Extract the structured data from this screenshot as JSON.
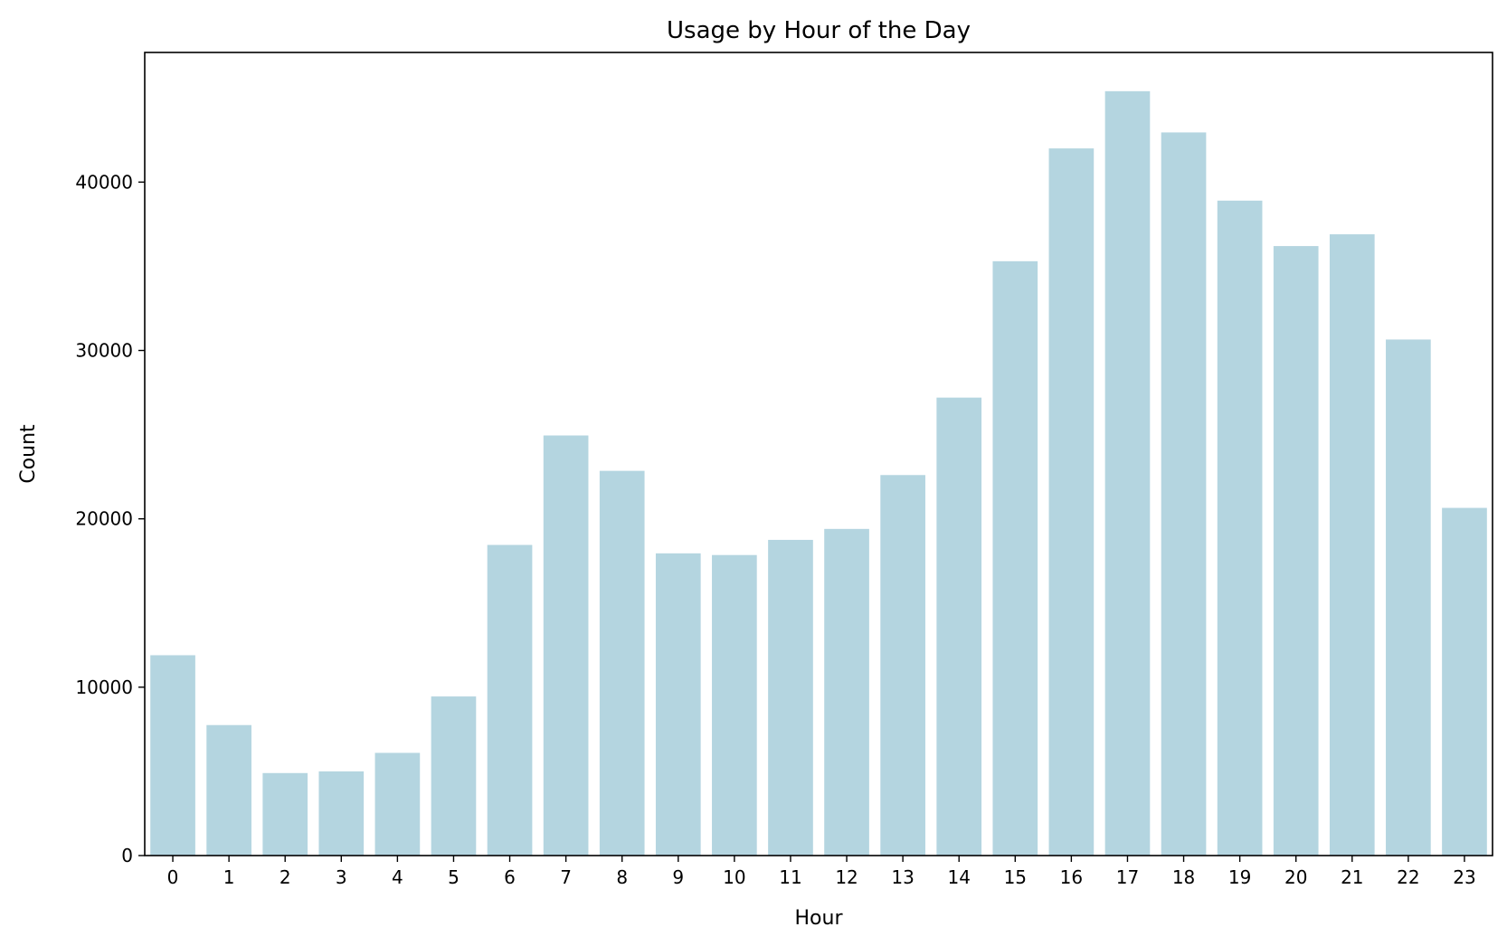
{
  "chart_data": {
    "type": "bar",
    "title": "Usage by Hour of the Day",
    "xlabel": "Hour",
    "ylabel": "Count",
    "categories": [
      "0",
      "1",
      "2",
      "3",
      "4",
      "5",
      "6",
      "7",
      "8",
      "9",
      "10",
      "11",
      "12",
      "13",
      "14",
      "15",
      "16",
      "17",
      "18",
      "19",
      "20",
      "21",
      "22",
      "23"
    ],
    "values": [
      11900,
      7750,
      4900,
      5000,
      6100,
      9450,
      18450,
      24950,
      22850,
      17950,
      17850,
      18750,
      19400,
      22600,
      27200,
      35300,
      42000,
      45400,
      42950,
      38900,
      36200,
      36900,
      30650,
      20650
    ],
    "ylim": [
      0,
      47700
    ],
    "yticks": [
      0,
      10000,
      20000,
      30000,
      40000
    ],
    "grid": false,
    "legend": "none",
    "bar_color": "#b4d5e0"
  }
}
